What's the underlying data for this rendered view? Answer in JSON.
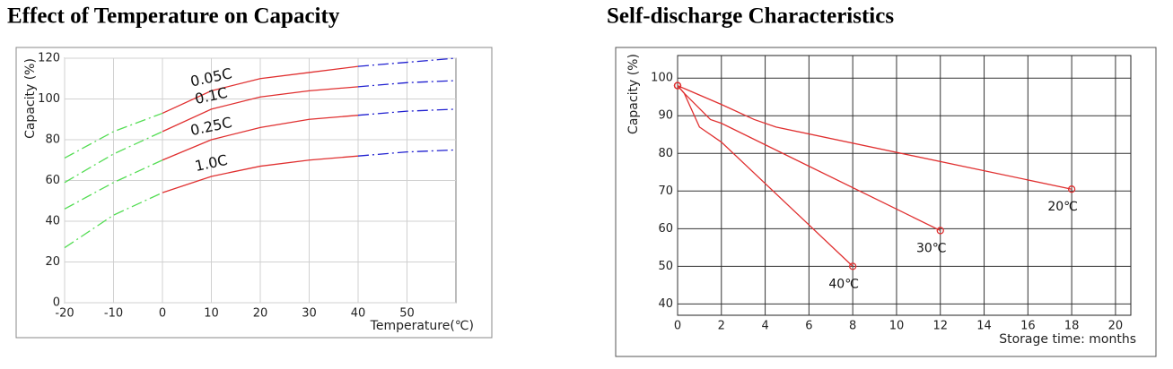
{
  "chart_data": [
    {
      "type": "line",
      "title": "Effect of Temperature on Capacity",
      "x_label": "Temperature(℃)",
      "y_label": "Capacity (%)",
      "x": [
        -20,
        -10,
        0,
        10,
        20,
        30,
        40,
        50,
        60
      ],
      "xlim": [
        -20,
        60
      ],
      "xticks": [
        -20,
        -10,
        0,
        10,
        20,
        30,
        40,
        50
      ],
      "ylim": [
        0,
        120
      ],
      "yticks": [
        0,
        20,
        40,
        60,
        80,
        100,
        120
      ],
      "grid": true,
      "grid_color": "#d0d0d0",
      "segments": [
        {
          "from": -20,
          "to": 0,
          "color": "#55dd55",
          "dashed": true
        },
        {
          "from": 0,
          "to": 40,
          "color": "#e03030",
          "dashed": false
        },
        {
          "from": 40,
          "to": 60,
          "color": "#2020d0",
          "dashed": true
        }
      ],
      "series": [
        {
          "name": "0.05C",
          "values": [
            71,
            84,
            93,
            104,
            110,
            113,
            116,
            118,
            120
          ]
        },
        {
          "name": "0.1C",
          "values": [
            59,
            73,
            84,
            95,
            101,
            104,
            106,
            108,
            109
          ]
        },
        {
          "name": "0.25C",
          "values": [
            46,
            59,
            70,
            80,
            86,
            90,
            92,
            94,
            95
          ]
        },
        {
          "name": "1.0C",
          "values": [
            27,
            43,
            54,
            62,
            67,
            70,
            72,
            74,
            75
          ]
        }
      ]
    },
    {
      "type": "line",
      "title": "Self-discharge Characteristics",
      "x_label": "Storage time: months",
      "y_label": "Capacity (%)",
      "xlim": [
        0,
        20.7
      ],
      "xticks": [
        0,
        2,
        4,
        6,
        8,
        10,
        12,
        14,
        16,
        18,
        20
      ],
      "ylim": [
        37,
        106
      ],
      "yticks": [
        40,
        50,
        60,
        70,
        80,
        90,
        100
      ],
      "grid": true,
      "grid_color": "#333333",
      "color": "#e03030",
      "series": [
        {
          "name": "20℃",
          "x": [
            0,
            2,
            3.5,
            4.5,
            18
          ],
          "values": [
            98,
            93,
            89,
            87,
            70.5
          ]
        },
        {
          "name": "30℃",
          "x": [
            0,
            0.3,
            1.5,
            2,
            12
          ],
          "values": [
            98,
            96,
            89,
            88,
            59.5
          ]
        },
        {
          "name": "40℃",
          "x": [
            0,
            0.3,
            1,
            2,
            8
          ],
          "values": [
            98,
            96,
            87,
            83,
            50
          ]
        }
      ]
    }
  ]
}
